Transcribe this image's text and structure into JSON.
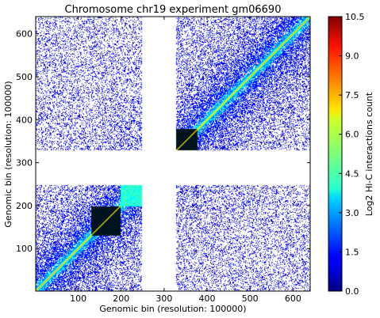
{
  "chart_data": {
    "type": "heatmap",
    "title": "Chromosome chr19 experiment gm06690",
    "xlabel": "Genomic bin (resolution: 100000)",
    "ylabel": "Genomic bin (resolution: 100000)",
    "colorbar_label": "Log2 Hi-C interactions count",
    "colormap": "jet",
    "xlim": [
      1,
      640
    ],
    "ylim": [
      1,
      640
    ],
    "x_ticks": [
      100,
      200,
      300,
      400,
      500,
      600
    ],
    "y_ticks": [
      100,
      200,
      300,
      400,
      500,
      600
    ],
    "color_range": [
      0.0,
      10.5
    ],
    "colorbar_ticks": [
      "10.5",
      "9.0",
      "7.5",
      "6.0",
      "4.5",
      "3.0",
      "1.5",
      "0.0"
    ],
    "colorbar_tick_values": [
      10.5,
      9.0,
      7.5,
      6.0,
      4.5,
      3.0,
      1.5,
      0.0
    ],
    "gap_bins": [
      [
        248,
        328
      ]
    ],
    "dark_blocks": [
      [
        130,
        198
      ],
      [
        328,
        378
      ]
    ],
    "bright_blocks": [
      [
        198,
        248
      ]
    ],
    "matrix_size": 640
  }
}
